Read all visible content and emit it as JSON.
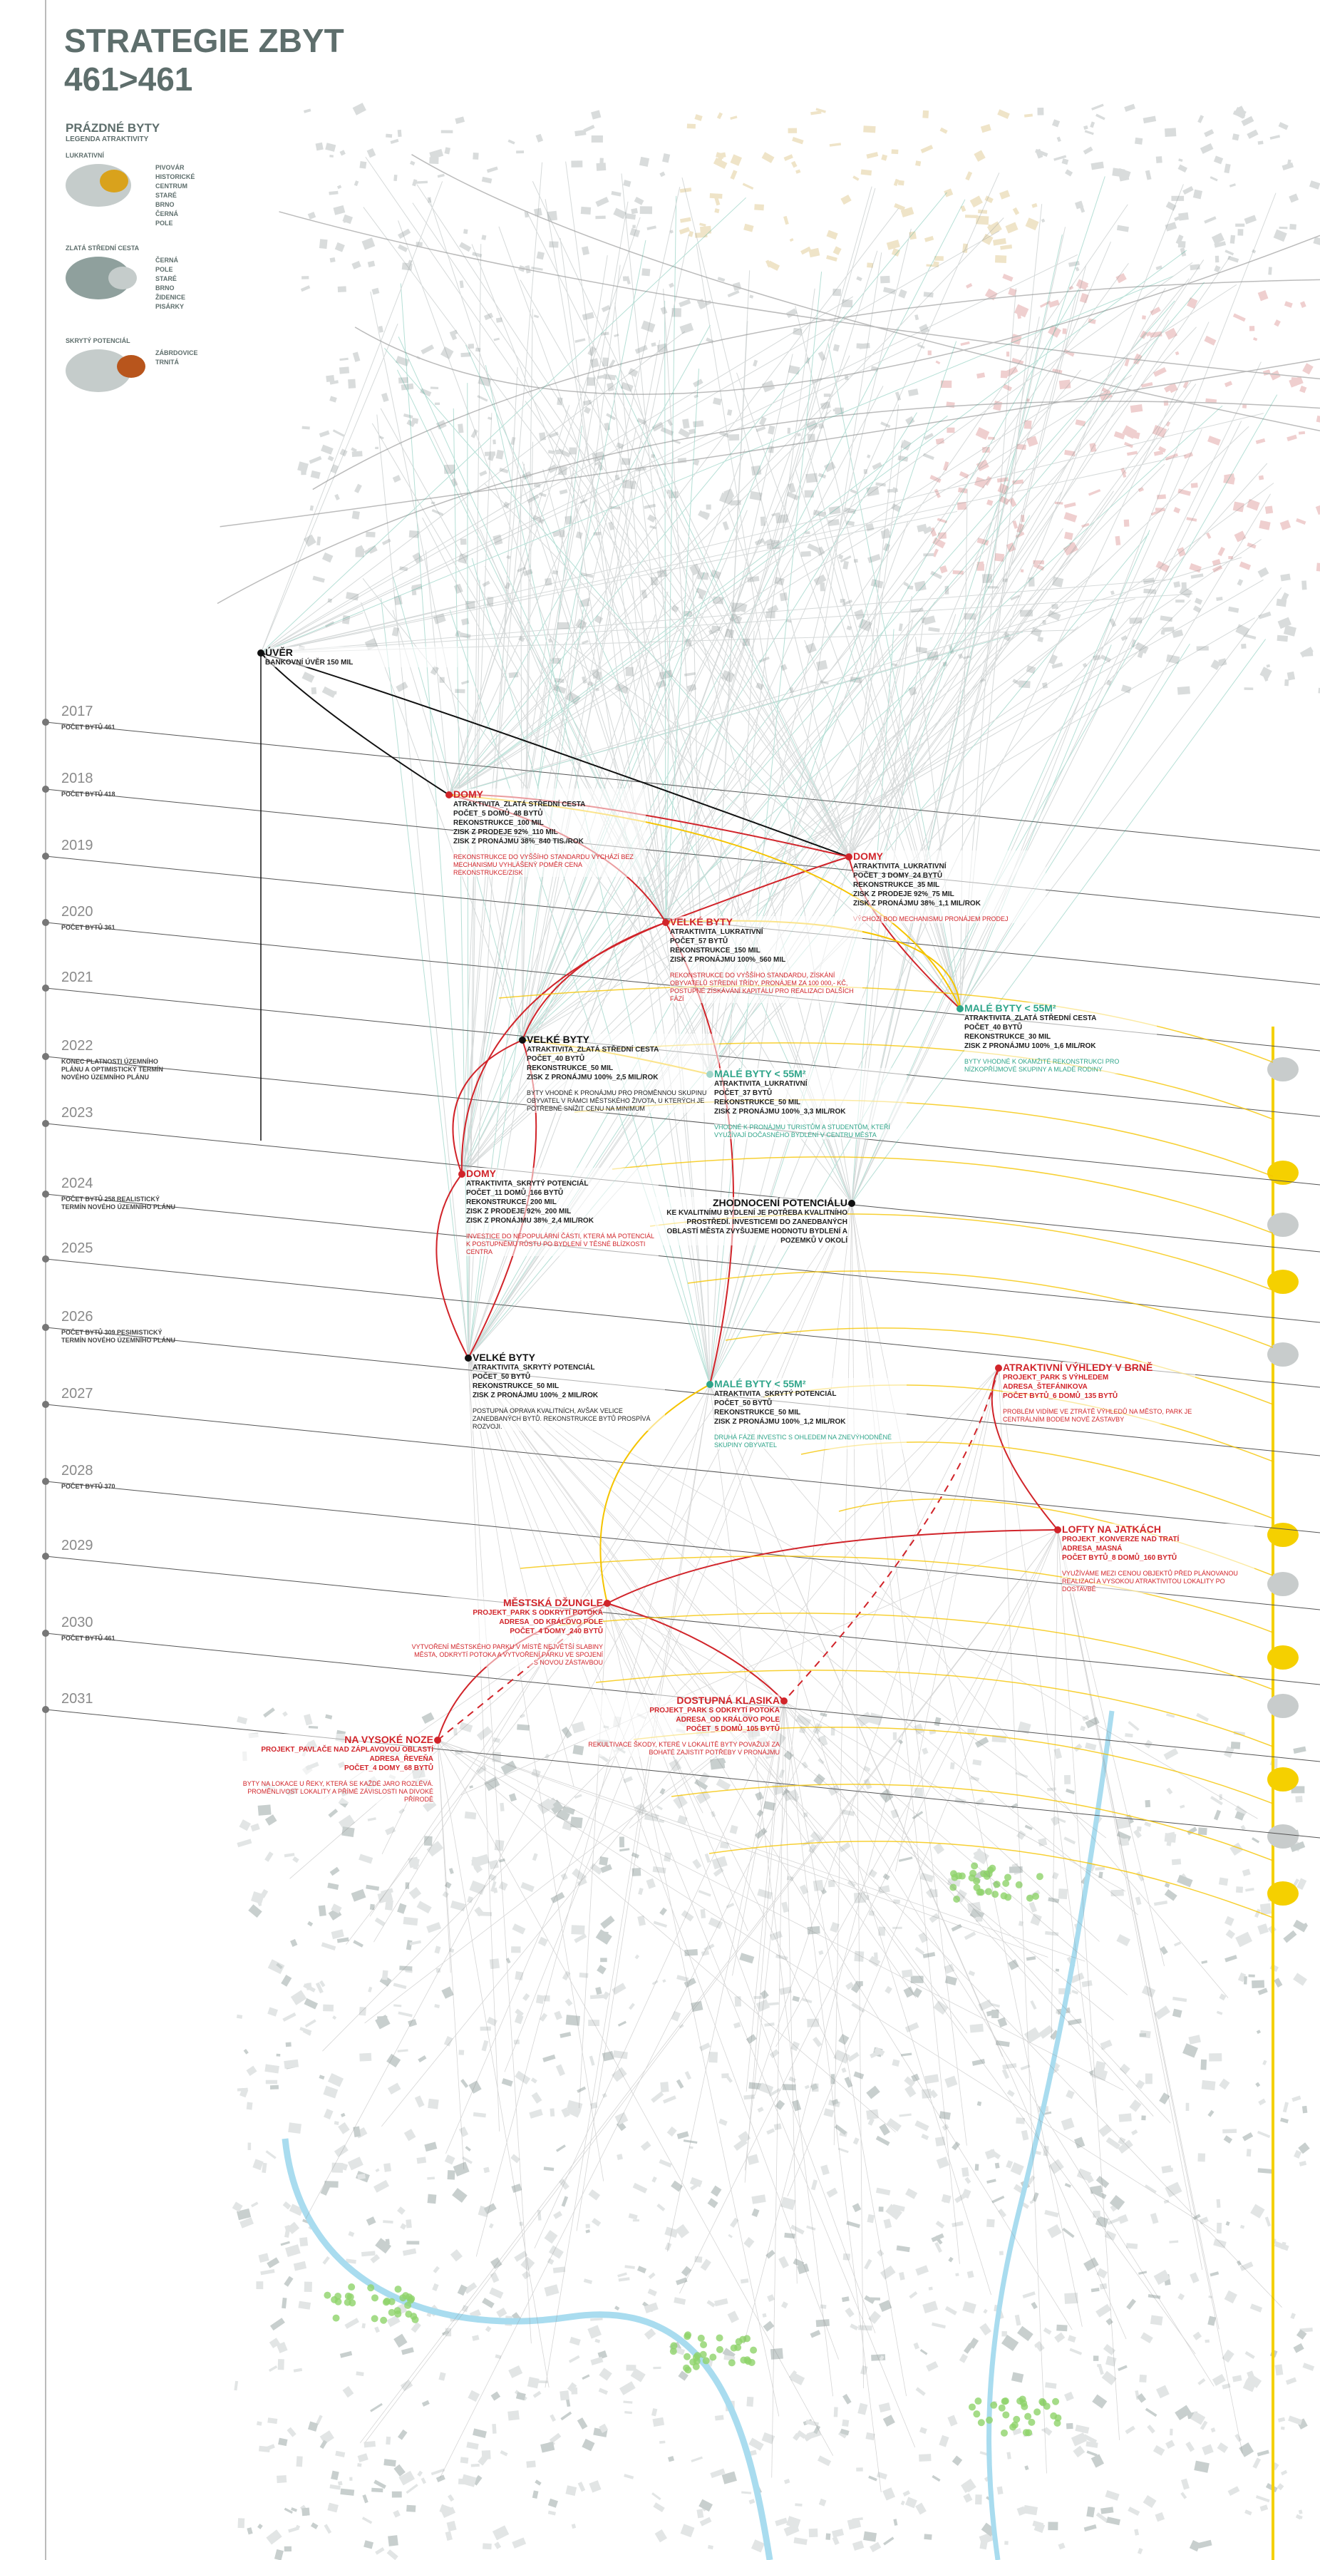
{
  "header": {
    "title": [
      "STRATEGIE ZBYT",
      "461>461"
    ]
  },
  "legend": {
    "title": "PRÁZDNÉ BYTY",
    "subtitle": "LEGENDA ATRAKTIVITY",
    "groups": [
      {
        "name": "LUKRATIVNÍ",
        "items": [
          "PIVOVÁR",
          "HISTORICKÉ CENTRUM",
          "STARÉ BRNO",
          "ČERNÁ POLE"
        ]
      },
      {
        "name": "ZLATÁ STŘEDNÍ CESTA",
        "items": [
          "ČERNÁ POLE",
          "STARÉ BRNO",
          "ŽIDENICE",
          "PISÁRKY"
        ]
      },
      {
        "name": "SKRYTÝ POTENCIÁL",
        "items": [
          "ZÁBRDOVICE",
          "TRNITÁ"
        ]
      }
    ]
  },
  "timeline": [
    {
      "year": "2017",
      "label": "POČET BYTŮ 461"
    },
    {
      "year": "2018",
      "label": "POČET BYTŮ 418"
    },
    {
      "year": "2019"
    },
    {
      "year": "2020",
      "label": "POČET BYTŮ 361"
    },
    {
      "year": "2021"
    },
    {
      "year": "2022",
      "label": "KONEC PLATNOSTI ÚZEMNÍHO PLÁNU A OPTIMISTICKÝ TERMÍN NOVÉHO ÚZEMNÍHO PLÁNU"
    },
    {
      "year": "2023"
    },
    {
      "year": "2024",
      "label": "POČET BYTŮ 258 REALISTICKÝ TERMÍN NOVÉHO ÚZEMNÍHO PLÁNU"
    },
    {
      "year": "2025"
    },
    {
      "year": "2026",
      "label": "POČET BYTŮ 309 PESIMISTICKÝ TERMÍN NOVÉHO ÚZEMNÍHO PLÁNU"
    },
    {
      "year": "2027"
    },
    {
      "year": "2028",
      "label": "POČET BYTŮ 370"
    },
    {
      "year": "2029"
    },
    {
      "year": "2030",
      "label": "POČET BYTŮ 461"
    },
    {
      "year": "2031"
    }
  ],
  "nodes": [
    {
      "title": "ÚVĚR",
      "lines": [
        "BANKOVNÍ ÚVĚR 150 MIL"
      ]
    },
    {
      "title": "DOMY",
      "lines": [
        "ATRAKTIVITA_ZLATÁ STŘEDNÍ CESTA",
        "POČET_5 DOMŮ_48 BYTŮ",
        "REKONSTRUKCE_100 MIL",
        "ZISK Z PRODEJE 92%_110 MIL",
        "ZISK Z PRONÁJMU 38%_840 TIS./ROK"
      ],
      "note": "REKONSTRUKCE DO VYŠŠÍHO STANDARDU VYCHÁZÍ BEZ MECHANISMU VYHLÁŠENÝ POMĚR CENA REKONSTRUKCE/ZISK"
    },
    {
      "title": "DOMY",
      "lines": [
        "ATRAKTIVITA_LUKRATIVNÍ",
        "POČET_3 DOMY_24 BYTŮ",
        "REKONSTRUKCE_35 MIL",
        "ZISK Z PRODEJE 92%_75 MIL",
        "ZISK Z PRONÁJMU 38%_1,1 MIL/ROK"
      ],
      "note": "VÝCHOZÍ BOD MECHANISMU PRONÁJEM PRODEJ"
    },
    {
      "title": "VELKÉ BYTY",
      "lines": [
        "ATRAKTIVITA_LUKRATIVNÍ",
        "POČET_57 BYTŮ",
        "REKONSTRUKCE_150 MIL",
        "ZISK Z PRONÁJMU 100%_560 MIL"
      ],
      "note": "REKONSTRUKCE DO VYŠŠÍHO STANDARDU, ZÍSKÁNÍ OBYVATELŮ STŘEDNÍ TŘÍDY, PRONÁJEM ZA 100 000,- KČ, POSTUPNÉ ZÍSKÁVÁNÍ KAPITÁLU PRO REALIZACI DALŠÍCH FÁZÍ"
    },
    {
      "title": "VELKÉ BYTY",
      "lines": [
        "ATRAKTIVITA_ZLATÁ STŘEDNÍ CESTA",
        "POČET_40 BYTŮ",
        "REKONSTRUKCE_50 MIL",
        "ZISK Z PRONÁJMU 100%_2,5 MIL/ROK"
      ],
      "note": "BYTY VHODNÉ K PRONÁJMU PRO PROMĚNNOU SKUPINU OBYVATEL V RÁMCI MĚSTSKÉHO ŽIVOTA, U KTERÝCH JE POTŘEBNÉ SNÍŽIT CENU NA MINIMUM"
    },
    {
      "title": "MALÉ BYTY < 55M²",
      "lines": [
        "ATRAKTIVITA_ZLATÁ STŘEDNÍ CESTA",
        "POČET_40 BYTŮ",
        "REKONSTRUKCE_30 MIL",
        "ZISK Z PRONÁJMU 100%_1,6 MIL/ROK"
      ],
      "note": "BYTY VHODNÉ K OKAMŽITÉ REKONSTRUKCI PRO NÍZKOPŘÍJMOVÉ SKUPINY A MLADÉ RODINY"
    },
    {
      "title": "MALÉ BYTY < 55M²",
      "lines": [
        "ATRAKTIVITA_LUKRATIVNÍ",
        "POČET_37 BYTŮ",
        "REKONSTRUKCE_50 MIL",
        "ZISK Z PRONÁJMU 100%_3,3 MIL/ROK"
      ],
      "note": "VHODNÉ K PRONÁJMU TURISTŮM A STUDENTŮM, KTEŘÍ VYUŽÍVAJÍ DOČASNÉHO BYDLENÍ V CENTRU MĚSTA"
    },
    {
      "title": "DOMY",
      "lines": [
        "ATRAKTIVITA_SKRYTÝ POTENCIÁL",
        "POČET_11 DOMŮ_166 BYTŮ",
        "REKONSTRUKCE_200 MIL",
        "ZISK Z PRODEJE 92%_200 MIL",
        "ZISK Z PRONÁJMU 38%_2,4 MIL/ROK"
      ],
      "note": "INVESTICE DO NEPOPULÁRNÍ ČÁSTI, KTERÁ MÁ POTENCIÁL K POSTUPNÉMU RŮSTU PO BYDLENÍ V TĚSNÉ BLÍZKOSTI CENTRA"
    },
    {
      "title": "ZHODNOCENÍ POTENCIÁLU",
      "lines": [
        "KE KVALITNÍMU BYDLENÍ JE POTŘEBA KVALITNÍHO PROSTŘEDÍ. INVESTICEMI DO ZANEDBANÝCH OBLASTÍ MĚSTA ZVYŠUJEME HODNOTU BYDLENÍ A POZEMKŮ V OKOLÍ"
      ]
    },
    {
      "title": "VELKÉ BYTY",
      "lines": [
        "ATRAKTIVITA_SKRYTÝ POTENCIÁL",
        "POČET_50 BYTŮ",
        "REKONSTRUKCE_50 MIL",
        "ZISK Z PRONÁJMU 100%_2 MIL/ROK"
      ],
      "note": "POSTUPNÁ OPRAVA KVALITNÍCH, AVŠAK VELICE ZANEDBANÝCH BYTŮ. REKONSTRUKCE BYTŮ PROSPÍVÁ ROZVOJI."
    },
    {
      "title": "MALÉ BYTY < 55M²",
      "lines": [
        "ATRAKTIVITA_SKRYTÝ POTENCIÁL",
        "POČET_50 BYTŮ",
        "REKONSTRUKCE_50 MIL",
        "ZISK Z PRONÁJMU 100%_1,2 MIL/ROK"
      ],
      "note": "DRUHÁ FÁZE INVESTIC S OHLEDEM NA ZNEVÝHODNĚNÉ SKUPINY OBYVATEL"
    },
    {
      "title": "ATRAKTIVNÍ VÝHLEDY V BRNĚ",
      "lines": [
        "PROJEKT_PARK S VÝHLEDEM",
        "ADRESA_ŠTEFÁNIKOVA",
        "POČET BYTŮ_6 DOMŮ_135 BYTŮ"
      ],
      "note": "PROBLÉM VIDÍME VE ZTRÁTĚ VÝHLEDŮ NA MĚSTO, PARK JE CENTRÁLNÍM BODEM NOVÉ ZÁSTAVBY"
    },
    {
      "title": "LOFTY NA JATKÁCH",
      "lines": [
        "PROJEKT_KONVERZE NAD TRATÍ",
        "ADRESA_MASNÁ",
        "POČET BYTŮ_8 DOMŮ_160 BYTŮ"
      ],
      "note": "VYUŽÍVÁME MEZI CENOU OBJEKTŮ PŘED PLÁNOVANOU REALIZACÍ A VYSOKOU ATRAKTIVITOU LOKALITY PO DOSTAVBĚ"
    },
    {
      "title": "MĚSTSKÁ DŽUNGLE",
      "lines": [
        "PROJEKT_PARK S ODKRYTÍ POTOKA",
        "ADRESA_OD KRÁLOVO POLE",
        "POČET_4 DOMY_240 BYTŮ"
      ],
      "note": "VYTVOŘENÍ MĚSTSKÉHO PARKU V MÍSTĚ NEJVĚTŠÍ SLABINY MĚSTA, ODKRYTÍ POTOKA A VYTVOŘENÍ PARKU VE SPOJENÍ S NOVOU ZÁSTAVBOU"
    },
    {
      "title": "DOSTUPNÁ KLASIKA",
      "lines": [
        "PROJEKT_PARK S ODKRYTÍ POTOKA",
        "ADRESA_OD KRÁLOVO POLE",
        "POČET_5 DOMŮ_105 BYTŮ"
      ],
      "note": "REKULTIVACE ŠKODY, KTERÉ V LOKALITĚ BYTY POVAŽUJÍ ZA BOHATÉ ZAJISTIT POTŘEBY V PRONÁJMU"
    },
    {
      "title": "NA VYSOKÉ NOZE",
      "lines": [
        "PROJEKT_PAVLAČE NAD ZÁPLAVOVOU OBLASTÍ",
        "ADRESA_ŘEVEŇA",
        "POČET_4 DOMY_68 BYTŮ"
      ],
      "note": "BYTY NA LOKACE U ŘEKY, KTERÁ SE KAŽDÉ JARO ROZLÉVÁ. PROMĚNLIVOST LOKALITY A PŘÍMÉ ZÁVISLOSTI NA DIVOKÉ PŘÍRODĚ"
    }
  ]
}
